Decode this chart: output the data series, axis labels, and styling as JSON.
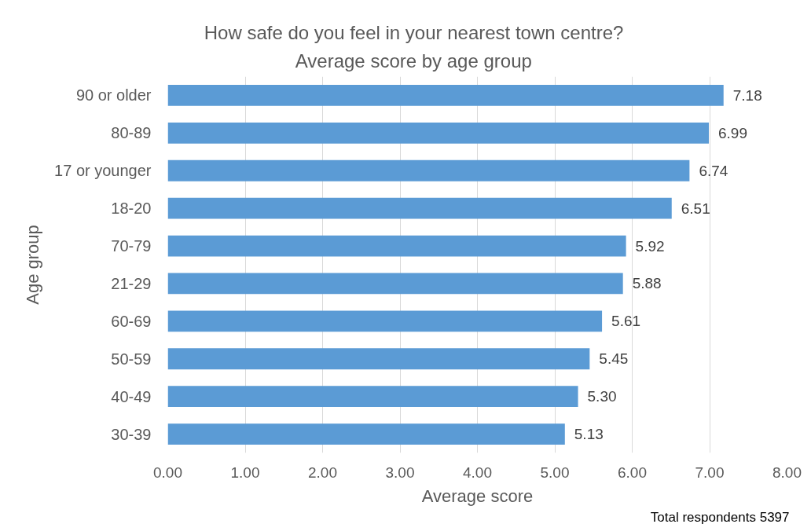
{
  "chart_data": {
    "type": "bar",
    "orientation": "horizontal",
    "title": "How safe do you feel in your nearest town centre?",
    "subtitle": "Average score by age group",
    "xlabel": "Average score",
    "ylabel": "Age group",
    "categories": [
      "90 or older",
      "80-89",
      "17 or younger",
      "18-20",
      "70-79",
      "21-29",
      "60-69",
      "50-59",
      "40-49",
      "30-39"
    ],
    "values": [
      7.18,
      6.99,
      6.74,
      6.51,
      5.92,
      5.88,
      5.61,
      5.45,
      5.3,
      5.13
    ],
    "value_labels": [
      "7.18",
      "6.99",
      "6.74",
      "6.51",
      "5.92",
      "5.88",
      "5.61",
      "5.45",
      "5.30",
      "5.13"
    ],
    "color": "#5b9bd5",
    "xlim": [
      0,
      8
    ],
    "xticks": [
      {
        "value": 0,
        "label": "0.00"
      },
      {
        "value": 1,
        "label": "1.00"
      },
      {
        "value": 2,
        "label": "2.00"
      },
      {
        "value": 3,
        "label": "3.00"
      },
      {
        "value": 4,
        "label": "4.00"
      },
      {
        "value": 5,
        "label": "5.00"
      },
      {
        "value": 6,
        "label": "6.00"
      },
      {
        "value": 7,
        "label": "7.00"
      },
      {
        "value": 8,
        "label": "8.00"
      }
    ],
    "grid": "x",
    "annotations": [
      "Total respondents 5397"
    ]
  }
}
